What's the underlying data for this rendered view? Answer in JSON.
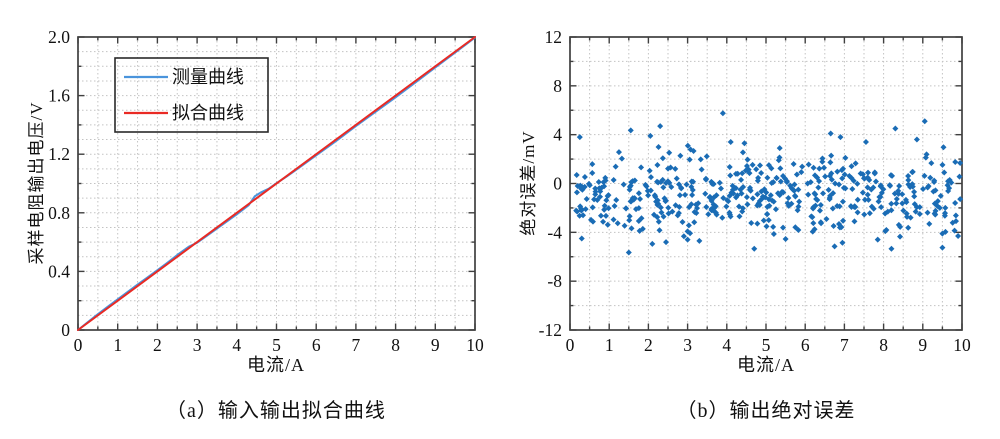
{
  "figure": {
    "background": "#ffffff",
    "frame_color": "#3f3f3f",
    "grid_color": "#c3c3c3",
    "text_color": "#111111"
  },
  "chart_data": [
    {
      "id": "a",
      "type": "line",
      "caption": "（a）输入输出拟合曲线",
      "xlabel": "电流/A",
      "ylabel": "采样电阻输出电压/V",
      "xlim": [
        0,
        10
      ],
      "ylim": [
        0,
        2.0
      ],
      "xticks": {
        "major": [
          0,
          1,
          2,
          3,
          4,
          5,
          6,
          7,
          8,
          9,
          10
        ],
        "labels": [
          "0",
          "1",
          "2",
          "3",
          "4",
          "5",
          "6",
          "7",
          "8",
          "9",
          "10"
        ],
        "minor_step": 0.5
      },
      "yticks": {
        "major": [
          0,
          0.4,
          0.8,
          1.2,
          1.6,
          2.0
        ],
        "labels": [
          "0",
          "0.4",
          "0.8",
          "1.2",
          "1.6",
          "2.0"
        ],
        "minor_step": 0.2
      },
      "grid": {
        "x_step": 0.5,
        "y_step": 0.1,
        "on": true
      },
      "legend": {
        "position": "upper-left"
      },
      "series": [
        {
          "name": "测量曲线",
          "color": "#4a94dc",
          "width": 2,
          "points": [
            [
              0,
              0
            ],
            [
              0.25,
              0.054
            ],
            [
              0.5,
              0.108
            ],
            [
              0.75,
              0.159
            ],
            [
              1,
              0.21
            ],
            [
              1.25,
              0.26
            ],
            [
              1.5,
              0.31
            ],
            [
              1.75,
              0.359
            ],
            [
              2,
              0.408
            ],
            [
              2.25,
              0.459
            ],
            [
              2.5,
              0.512
            ],
            [
              2.8,
              0.57
            ],
            [
              3,
              0.596
            ],
            [
              3.25,
              0.644
            ],
            [
              3.5,
              0.692
            ],
            [
              3.75,
              0.741
            ],
            [
              4,
              0.79
            ],
            [
              4.3,
              0.852
            ],
            [
              4.45,
              0.912
            ],
            [
              4.6,
              0.938
            ],
            [
              4.8,
              0.964
            ],
            [
              5,
              1.002
            ],
            [
              5.25,
              1.047
            ],
            [
              5.5,
              1.094
            ],
            [
              6,
              1.192
            ],
            [
              6.5,
              1.29
            ],
            [
              7,
              1.392
            ],
            [
              7.5,
              1.49
            ],
            [
              8,
              1.588
            ],
            [
              8.5,
              1.69
            ],
            [
              9,
              1.792
            ],
            [
              9.5,
              1.894
            ],
            [
              10,
              1.996
            ]
          ]
        },
        {
          "name": "拟合曲线",
          "color": "#e92a24",
          "width": 2,
          "points": [
            [
              0,
              0
            ],
            [
              10,
              2.0
            ]
          ]
        }
      ]
    },
    {
      "id": "b",
      "type": "scatter",
      "caption": "（b）输出绝对误差",
      "xlabel": "电流/A",
      "ylabel": "绝对误差/mV",
      "xlim": [
        0,
        10
      ],
      "ylim": [
        -12,
        12
      ],
      "xticks": {
        "major": [
          0,
          1,
          2,
          3,
          4,
          5,
          6,
          7,
          8,
          9,
          10
        ],
        "labels": [
          "0",
          "1",
          "2",
          "3",
          "4",
          "5",
          "6",
          "7",
          "8",
          "9",
          "10"
        ],
        "minor_step": 0.5
      },
      "yticks": {
        "major": [
          -12,
          -8,
          -4,
          0,
          4,
          8,
          12
        ],
        "labels": [
          "-12",
          "-8",
          "-4",
          "0",
          "4",
          "8",
          "12"
        ],
        "minor_step": 2
      },
      "grid": {
        "x_step": 0.5,
        "y_step": 2,
        "on": true
      },
      "scatter": {
        "marker": "diamond",
        "color": "#1a6cb5",
        "marker_size": 3,
        "n_points": 500,
        "seed": 20240613,
        "x_range": [
          0.15,
          9.97
        ],
        "y_mean": -0.95,
        "y_std": 1.75,
        "y_clamp": [
          -4.4,
          3.1
        ],
        "outliers": [
          [
            3.9,
            5.75
          ],
          [
            9.05,
            5.1
          ],
          [
            2.3,
            4.7
          ],
          [
            8.3,
            4.5
          ],
          [
            1.55,
            4.35
          ],
          [
            6.65,
            4.1
          ],
          [
            2.05,
            3.9
          ],
          [
            6.9,
            3.8
          ],
          [
            0.25,
            3.8
          ],
          [
            8.85,
            3.6
          ],
          [
            7.55,
            3.4
          ],
          [
            4.1,
            3.4
          ],
          [
            4.45,
            3.3
          ],
          [
            5.35,
            2.9
          ],
          [
            1.5,
            -5.65
          ],
          [
            4.7,
            -5.35
          ],
          [
            8.2,
            -5.35
          ],
          [
            9.5,
            -5.25
          ],
          [
            6.75,
            -5.15
          ],
          [
            2.1,
            -4.95
          ],
          [
            6.95,
            -4.85
          ],
          [
            2.45,
            -4.8
          ],
          [
            3.3,
            -4.7
          ],
          [
            7.85,
            -4.6
          ],
          [
            5.5,
            -4.55
          ],
          [
            3.0,
            -4.6
          ],
          [
            0.3,
            -4.5
          ],
          [
            9.9,
            -4.3
          ]
        ]
      }
    }
  ]
}
